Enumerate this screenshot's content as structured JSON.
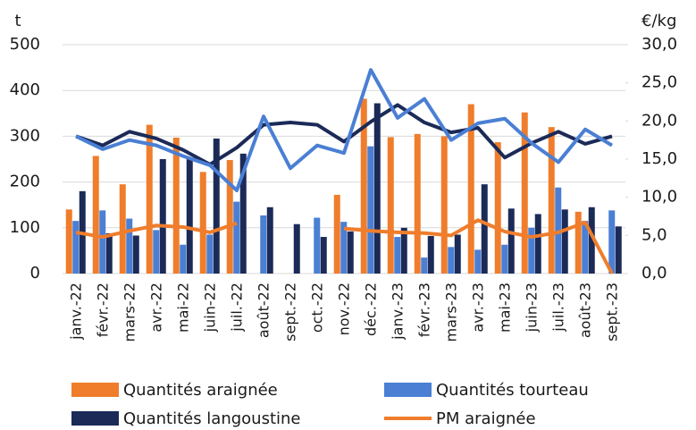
{
  "chart_data": {
    "type": "bar",
    "y_label": "t",
    "y2_label": "€/kg",
    "categories": [
      "janv.-22",
      "févr.-22",
      "mars-22",
      "avr.-22",
      "mai-22",
      "juin-22",
      "juil.-22",
      "août-22",
      "sept.-22",
      "oct.-22",
      "nov.-22",
      "déc.-22",
      "janv.-23",
      "févr.-23",
      "mars-23",
      "avr.-23",
      "mai-23",
      "juin-23",
      "juil.-23",
      "août-23",
      "sept.-23"
    ],
    "ylim": [
      0,
      500
    ],
    "yticks": [
      0,
      100,
      200,
      300,
      400,
      500
    ],
    "y2lim": [
      0,
      30
    ],
    "y2ticks": [
      {
        "value": 0,
        "label": "0,0"
      },
      {
        "value": 5,
        "label": "5,0"
      },
      {
        "value": 10,
        "label": "10,0"
      },
      {
        "value": 15,
        "label": "15,0"
      },
      {
        "value": 20,
        "label": "20,0"
      },
      {
        "value": 25,
        "label": "25,0"
      },
      {
        "value": 30,
        "label": "30,0"
      }
    ],
    "grid": true,
    "series": [
      {
        "name": "Quantités araignée",
        "color": "#ef7d2c",
        "kind": "bar",
        "values": [
          140,
          257,
          195,
          325,
          297,
          222,
          248,
          null,
          null,
          null,
          172,
          382,
          298,
          305,
          300,
          370,
          287,
          352,
          320,
          135,
          null
        ]
      },
      {
        "name": "Quantités tourteau",
        "color": "#4a7fd4",
        "kind": "bar",
        "values": [
          115,
          138,
          120,
          95,
          63,
          85,
          157,
          127,
          null,
          122,
          113,
          278,
          80,
          35,
          58,
          52,
          63,
          100,
          188,
          115,
          138
        ]
      },
      {
        "name": "Quantités langoustine",
        "color": "#1b2a57",
        "kind": "bar",
        "values": [
          180,
          88,
          83,
          250,
          250,
          295,
          262,
          145,
          108,
          80,
          92,
          372,
          100,
          82,
          85,
          195,
          142,
          130,
          140,
          145,
          103
        ]
      },
      {
        "name": "PM araignée",
        "color": "#ef7d2c",
        "kind": "line",
        "axis": "y2",
        "values": [
          5.4,
          4.8,
          5.6,
          6.3,
          6.1,
          5.4,
          6.6,
          null,
          null,
          null,
          5.9,
          5.6,
          5.4,
          5.3,
          5.0,
          7.0,
          5.5,
          4.8,
          5.4,
          6.7,
          0.0
        ]
      },
      {
        "color": "#1b2a57",
        "kind": "line",
        "axis": "y2",
        "values": [
          18.0,
          16.8,
          18.6,
          17.7,
          16.2,
          14.3,
          16.5,
          19.5,
          19.8,
          19.5,
          17.3,
          19.9,
          22.1,
          19.8,
          18.5,
          19.1,
          15.2,
          17.1,
          18.6,
          17.0,
          18.0
        ]
      },
      {
        "color": "#4a7fd4",
        "kind": "line",
        "axis": "y2",
        "values": [
          18.0,
          16.3,
          17.5,
          16.8,
          15.4,
          14.2,
          10.9,
          20.6,
          13.8,
          16.8,
          15.8,
          26.7,
          20.4,
          22.9,
          17.5,
          19.7,
          20.3,
          17.1,
          14.6,
          18.9,
          16.8
        ]
      }
    ]
  }
}
